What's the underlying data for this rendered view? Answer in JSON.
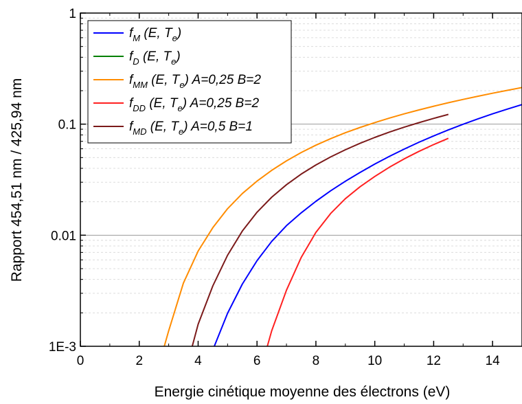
{
  "chart_data": {
    "type": "line",
    "xlabel": "Energie cinétique moyenne des électrons (eV)",
    "ylabel": "Rapport 454,51 nm / 425,94 nm",
    "xlim": [
      0,
      15
    ],
    "ylim": [
      0.001,
      1
    ],
    "yscale": "log",
    "x_ticks": [
      0,
      2,
      4,
      6,
      8,
      10,
      12,
      14
    ],
    "y_ticks": [
      0.001,
      0.01,
      0.1,
      1
    ],
    "y_tick_labels": [
      "1E-3",
      "0.01",
      "0.1",
      "1"
    ],
    "grid": {
      "major_y": true,
      "minor_y": true,
      "x": false
    },
    "legend_position": "top-left",
    "series": [
      {
        "name": "f_M (E, T_e)",
        "legend_parts": {
          "f": "f",
          "sub": "M",
          "args_pre": " (E, T",
          "args_sub": "e",
          "args_post": ")",
          "extra": ""
        },
        "color": "#0000ff",
        "x": [
          4.55,
          5,
          5.5,
          6,
          6.5,
          7,
          7.5,
          8,
          8.5,
          9,
          9.5,
          10,
          10.5,
          11,
          11.5,
          12,
          12.5,
          13,
          13.5,
          14,
          14.5,
          15
        ],
        "y": [
          0.001,
          0.00198,
          0.00363,
          0.0059,
          0.0088,
          0.0122,
          0.0159,
          0.0202,
          0.0251,
          0.0306,
          0.0367,
          0.0437,
          0.0513,
          0.0596,
          0.0687,
          0.0784,
          0.0887,
          0.0998,
          0.1114,
          0.1237,
          0.1365,
          0.15
        ]
      },
      {
        "name": "f_D (E, T_e)",
        "legend_parts": {
          "f": "f",
          "sub": "D",
          "args_pre": " (E, T",
          "args_sub": "e",
          "args_post": ")",
          "extra": ""
        },
        "color": "#008000",
        "x": [],
        "y": []
      },
      {
        "name": "f_MM (E, T_e) A=0,25 B=2",
        "legend_parts": {
          "f": "f",
          "sub": "MM",
          "args_pre": " (E, T",
          "args_sub": "e",
          "args_post": ")",
          "extra": " A=0,25 B=2"
        },
        "color": "#ff8c00",
        "x": [
          2.85,
          3,
          3.5,
          4,
          4.5,
          5,
          5.5,
          6,
          6.5,
          7,
          7.5,
          8,
          8.5,
          9,
          9.5,
          10,
          10.5,
          11,
          11.5,
          12,
          12.5,
          13,
          13.5,
          14,
          14.5,
          15
        ],
        "y": [
          0.001,
          0.00138,
          0.0037,
          0.0072,
          0.0117,
          0.0173,
          0.0237,
          0.0307,
          0.0384,
          0.0467,
          0.0555,
          0.0646,
          0.074,
          0.0836,
          0.0933,
          0.1033,
          0.1135,
          0.1238,
          0.1343,
          0.145,
          0.1559,
          0.167,
          0.1783,
          0.1898,
          0.2015,
          0.2134
        ]
      },
      {
        "name": "f_DD (E, T_e) A=0,25 B=2",
        "legend_parts": {
          "f": "f",
          "sub": "DD",
          "args_pre": " (E, T",
          "args_sub": "e",
          "args_post": ")",
          "extra": " A=0,25 B=2"
        },
        "color": "#ff2020",
        "x": [
          6.35,
          6.5,
          7,
          7.5,
          8,
          8.5,
          9,
          9.5,
          10,
          10.5,
          11,
          11.5,
          12,
          12.5
        ],
        "y": [
          0.001,
          0.00138,
          0.0032,
          0.0063,
          0.0106,
          0.0157,
          0.0213,
          0.0273,
          0.0338,
          0.041,
          0.0487,
          0.0569,
          0.0655,
          0.0745
        ]
      },
      {
        "name": "f_MD (E, T_e) A=0,5 B=1",
        "legend_parts": {
          "f": "f",
          "sub": "MD",
          "args_pre": " (E, T",
          "args_sub": "e",
          "args_post": ")",
          "extra": " A=0,5 B=1"
        },
        "color": "#7b1a1a",
        "x": [
          3.8,
          4,
          4.5,
          5,
          5.5,
          6,
          6.5,
          7,
          7.5,
          8,
          8.5,
          9,
          9.5,
          10,
          10.5,
          11,
          11.5,
          12,
          12.5
        ],
        "y": [
          0.001,
          0.00158,
          0.0035,
          0.0066,
          0.0109,
          0.0161,
          0.022,
          0.0285,
          0.0355,
          0.0429,
          0.0507,
          0.0588,
          0.0672,
          0.0759,
          0.0848,
          0.0939,
          0.1032,
          0.1127,
          0.1224
        ]
      }
    ]
  }
}
